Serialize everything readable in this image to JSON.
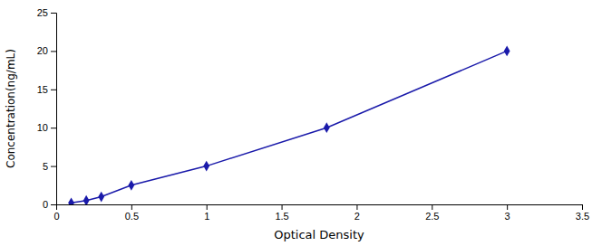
{
  "chart_data": {
    "type": "line",
    "x": [
      0.1,
      0.2,
      0.3,
      0.5,
      1.0,
      1.8,
      3.0
    ],
    "values": [
      0.2,
      0.5,
      1.0,
      2.5,
      5.0,
      10.0,
      20.0
    ],
    "color": "#1a1aaa",
    "marker": "diamond",
    "xlabel": "Optical Density",
    "ylabel": "Concentration(ng/mL)",
    "xlim": [
      0,
      3.5
    ],
    "ylim": [
      0,
      25
    ],
    "xticks": [
      0,
      0.5,
      1,
      1.5,
      2,
      2.5,
      3,
      3.5
    ],
    "yticks": [
      0,
      5,
      10,
      15,
      20,
      25
    ],
    "grid": false
  }
}
